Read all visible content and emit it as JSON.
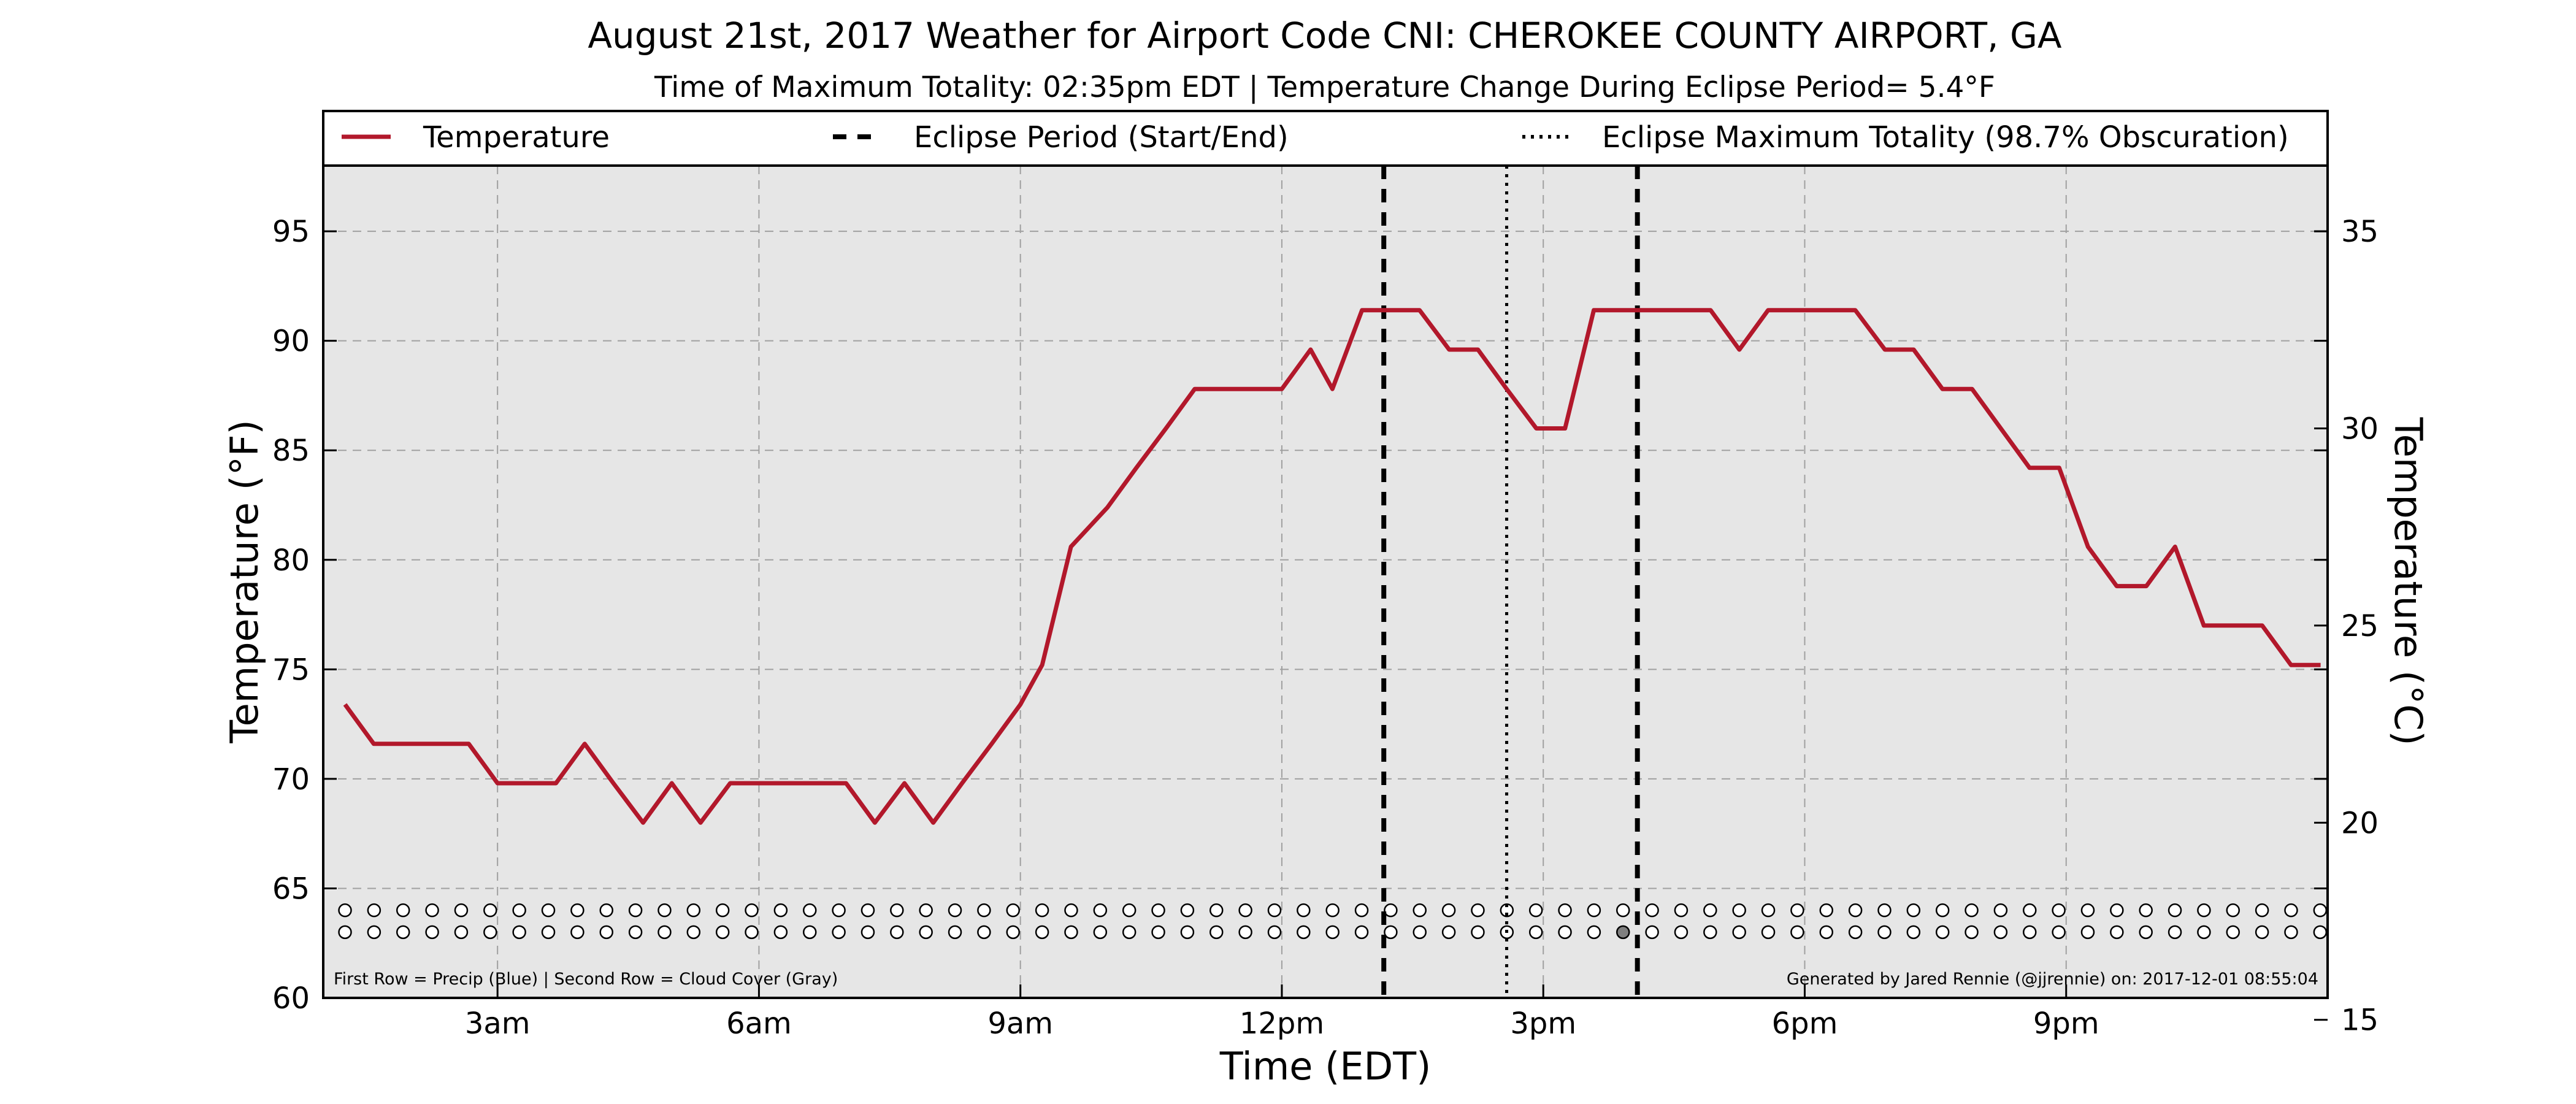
{
  "chart_data": {
    "type": "line",
    "title": "August 21st, 2017 Weather for Airport Code CNI: CHEROKEE COUNTY AIRPORT, GA",
    "subtitle": "Time of Maximum Totality: 02:35pm EDT | Temperature Change During Eclipse Period= 5.4°F",
    "xlabel": "Time (EDT)",
    "ylabel": "Temperature (°F)",
    "ylabel_right": "Temperature (°C)",
    "xlim": [
      1.0,
      24.0
    ],
    "ylim": [
      60,
      98
    ],
    "ylim_right_celsius": [
      15.56,
      36.67
    ],
    "x_ticks": [
      {
        "x": 3,
        "label": "3am"
      },
      {
        "x": 6,
        "label": "6am"
      },
      {
        "x": 9,
        "label": "9am"
      },
      {
        "x": 12,
        "label": "12pm"
      },
      {
        "x": 15,
        "label": "3pm"
      },
      {
        "x": 18,
        "label": "6pm"
      },
      {
        "x": 21,
        "label": "9pm"
      }
    ],
    "y_ticks": [
      60,
      65,
      70,
      75,
      80,
      85,
      90,
      95
    ],
    "y_ticks_right_celsius": [
      15,
      20,
      25,
      30,
      35
    ],
    "grid": true,
    "legend_position": "top, above plot area",
    "legend": [
      {
        "label": "Temperature",
        "style": "solid",
        "color": "#b2182b"
      },
      {
        "label": "Eclipse Period (Start/End)",
        "style": "dashed",
        "color": "#000000"
      },
      {
        "label": "Eclipse Maximum Totality (98.7% Obscuration)",
        "style": "dotted",
        "color": "#000000"
      }
    ],
    "series": [
      {
        "name": "Temperature",
        "color": "#b2182b",
        "x": [
          1.25,
          1.58,
          2.0,
          2.33,
          2.67,
          3.0,
          3.33,
          3.67,
          4.0,
          4.33,
          4.67,
          5.0,
          5.33,
          5.67,
          6.0,
          6.33,
          6.67,
          7.0,
          7.33,
          7.67,
          8.0,
          8.33,
          8.67,
          9.0,
          9.25,
          9.58,
          10.0,
          10.33,
          10.67,
          11.0,
          11.33,
          11.67,
          12.0,
          12.33,
          12.58,
          12.92,
          13.25,
          13.58,
          13.92,
          14.25,
          14.58,
          14.92,
          15.25,
          15.58,
          15.92,
          16.25,
          16.58,
          16.92,
          17.25,
          17.58,
          17.92,
          18.25,
          18.58,
          18.92,
          19.25,
          19.58,
          19.92,
          20.25,
          20.58,
          20.92,
          21.25,
          21.58,
          21.92,
          22.25,
          22.58,
          22.92,
          23.25,
          23.58,
          23.92
        ],
        "values": [
          73.4,
          71.6,
          71.6,
          71.6,
          71.6,
          69.8,
          69.8,
          69.8,
          71.6,
          69.8,
          68.0,
          69.8,
          68.0,
          69.8,
          69.8,
          69.8,
          69.8,
          69.8,
          68.0,
          69.8,
          68.0,
          69.8,
          71.6,
          73.4,
          75.2,
          80.6,
          82.4,
          84.2,
          86.0,
          87.8,
          87.8,
          87.8,
          87.8,
          89.6,
          87.8,
          91.4,
          91.4,
          91.4,
          89.6,
          89.6,
          87.8,
          86.0,
          86.0,
          91.4,
          91.4,
          91.4,
          91.4,
          91.4,
          89.6,
          91.4,
          91.4,
          91.4,
          91.4,
          89.6,
          89.6,
          87.8,
          87.8,
          86.0,
          84.2,
          84.2,
          80.6,
          78.8,
          78.8,
          80.6,
          77.0,
          77.0,
          77.0,
          75.2,
          75.2
        ]
      }
    ],
    "eclipse_start": 13.17,
    "eclipse_end": 16.08,
    "eclipse_max": 14.58,
    "circle_rows": {
      "first_row_y": 64,
      "second_row_y": 63,
      "count": 69,
      "x_start": 1.25,
      "x_step": 0.3333,
      "second_row_filled_index": 44
    },
    "footnote_left": "First Row = Precip (Blue) | Second Row = Cloud Cover (Gray)",
    "footnote_right": "Generated by Jared Rennie (@jjrennie) on: 2017-12-01 08:55:04",
    "colors": {
      "plot_background": "#e6e6e6",
      "temperature": "#b2182b",
      "grid": "#a0a0a0",
      "cloud_fill": "#7f7f7f"
    }
  }
}
